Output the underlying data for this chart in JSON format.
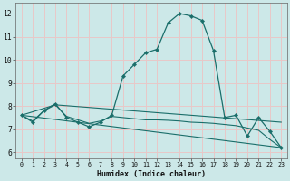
{
  "xlabel": "Humidex (Indice chaleur)",
  "bg_color": "#cce8e8",
  "plot_bg_color": "#cce8e8",
  "grid_color": "#e8c8c8",
  "line_color": "#1a6e6a",
  "xlim": [
    -0.5,
    23.5
  ],
  "ylim": [
    5.75,
    12.45
  ],
  "yticks": [
    6,
    7,
    8,
    9,
    10,
    11,
    12
  ],
  "xticks": [
    0,
    1,
    2,
    3,
    4,
    5,
    6,
    7,
    8,
    9,
    10,
    11,
    12,
    13,
    14,
    15,
    16,
    17,
    18,
    19,
    20,
    21,
    22,
    23
  ],
  "series1_x": [
    0,
    1,
    2,
    3,
    4,
    5,
    6,
    7,
    8,
    9,
    10,
    11,
    12,
    13,
    14,
    15,
    16,
    17,
    18,
    19,
    20,
    21,
    22,
    23
  ],
  "series1_y": [
    7.6,
    7.3,
    7.8,
    8.1,
    7.5,
    7.3,
    7.1,
    7.3,
    7.6,
    9.3,
    9.8,
    10.3,
    10.45,
    11.6,
    12.0,
    11.9,
    11.7,
    10.4,
    7.5,
    7.6,
    6.7,
    7.5,
    6.9,
    6.2
  ],
  "series2_x": [
    0,
    1,
    2,
    3,
    4,
    5,
    6,
    7,
    8,
    9,
    10,
    11,
    12,
    13,
    14,
    15,
    16,
    17,
    18,
    19,
    20,
    21,
    22,
    23
  ],
  "series2_y": [
    7.6,
    7.35,
    7.8,
    8.05,
    7.55,
    7.4,
    7.25,
    7.35,
    7.55,
    7.5,
    7.45,
    7.4,
    7.4,
    7.38,
    7.35,
    7.3,
    7.28,
    7.25,
    7.2,
    7.15,
    7.05,
    6.95,
    6.55,
    6.2
  ],
  "series3_x": [
    0,
    23
  ],
  "series3_y": [
    7.6,
    6.2
  ],
  "series4_x": [
    0,
    3,
    23
  ],
  "series4_y": [
    7.6,
    8.05,
    7.3
  ]
}
